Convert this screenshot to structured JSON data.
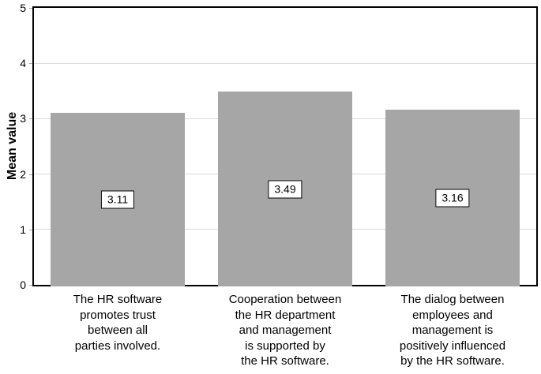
{
  "chart_data": {
    "type": "bar",
    "title": "",
    "ylabel": "Mean value",
    "xlabel": "",
    "ylim": [
      0,
      5
    ],
    "yticks": [
      0,
      1,
      2,
      3,
      4,
      5
    ],
    "grid": "horizontal-light-gray",
    "legend": "none",
    "categories": [
      [
        "The HR software",
        "promotes trust",
        "between all",
        "parties involved."
      ],
      [
        "Cooperation between",
        "the HR department",
        "and management",
        "is supported by",
        "the HR software."
      ],
      [
        "The dialog between",
        "employees and",
        "management is",
        "positively influenced",
        "by the HR software."
      ]
    ],
    "values": [
      3.11,
      3.49,
      3.16
    ],
    "data_labels": [
      "3.11",
      "3.49",
      "3.16"
    ],
    "data_label_style": "boxed-white-black-border-centered-in-bar",
    "colors": {
      "background": "#FFFFFF",
      "bar_fill": "#A6A6A6",
      "gridline": "#D9D9D9",
      "axis": "#000000",
      "tick": "#A6A6A6",
      "label_box_bg": "#FFFFFF",
      "label_box_border": "#000000",
      "text": "#000000"
    }
  }
}
